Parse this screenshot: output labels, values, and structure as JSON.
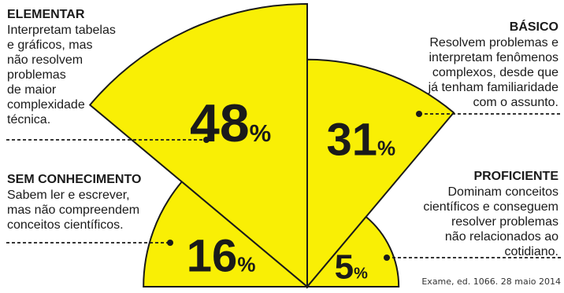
{
  "chart_data": {
    "type": "pie",
    "colors": {
      "slice": "#f9ef05",
      "stroke": "#1a1a1a",
      "text": "#1a1a1a"
    },
    "slices": [
      {
        "key": "elementar",
        "label": "ELEMENTAR",
        "value": 48,
        "value_label": "48",
        "unit": "%",
        "description": [
          "Interpretam tabelas",
          "e gráficos, mas",
          "não resolvem",
          "problemas",
          "de maior",
          "complexidade",
          "técnica."
        ]
      },
      {
        "key": "basico",
        "label": "BÁSICO",
        "value": 31,
        "value_label": "31",
        "unit": "%",
        "description": [
          "Resolvem problemas e",
          "interpretam fenômenos",
          "complexos, desde que",
          "já tenham familiaridade",
          "com o assunto."
        ]
      },
      {
        "key": "sem-conhecimento",
        "label": "SEM CONHECIMENTO",
        "value": 16,
        "value_label": "16",
        "unit": "%",
        "description": [
          "Sabem ler e escrever,",
          "mas não compreendem",
          "conceitos científicos."
        ]
      },
      {
        "key": "proficiente",
        "label": "PROFICIENTE",
        "value": 5,
        "value_label": "5",
        "unit": "%",
        "description": [
          "Dominam conceitos",
          "científicos e conseguem",
          "resolver problemas",
          "não relacionados ao",
          "cotidiano."
        ]
      }
    ]
  },
  "source": "Exame, ed. 1066. 28 maio 2014"
}
